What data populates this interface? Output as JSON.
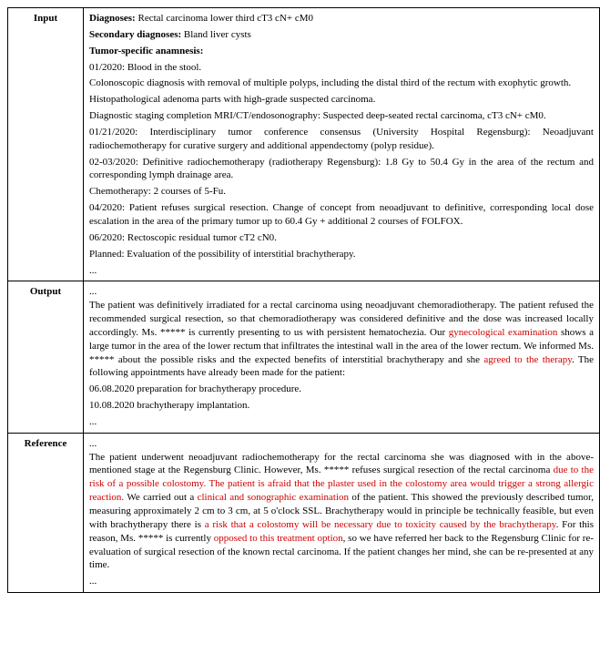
{
  "rows": {
    "input": {
      "label": "Input",
      "diagnoses_label": "Diagnoses:",
      "diagnoses_text": " Rectal carcinoma lower third cT3 cN+ cM0",
      "secondary_label": "Secondary diagnoses:",
      "secondary_text": " Bland liver cysts",
      "anamnesis_label": "Tumor-specific anamnesis:",
      "p1": "01/2020: Blood in the stool.",
      "p2": "Colonoscopic diagnosis with removal of multiple polyps, including the distal third of the rectum with exophytic growth.",
      "p3": "Histopathological adenoma parts with high-grade suspected carcinoma.",
      "p4": "Diagnostic staging completion MRI/CT/endosonography: Suspected deep-seated rectal carcinoma, cT3 cN+ cM0.",
      "p5": "01/21/2020: Interdisciplinary tumor conference consensus (University Hospital Regensburg): Neoadjuvant radiochemotherapy for curative surgery and additional appendectomy (polyp residue).",
      "p6": "02-03/2020: Definitive radiochemotherapy (radiotherapy Regensburg): 1.8 Gy to 50.4 Gy in the area of the rectum and corresponding lymph drainage area.",
      "p7": "Chemotherapy: 2 courses of 5-Fu.",
      "p8": "04/2020: Patient refuses surgical resection. Change of concept from neoadjuvant to definitive, corresponding local dose escalation in the area of the primary tumor up to 60.4 Gy + additional 2 courses of FOLFOX.",
      "p9": "06/2020: Rectoscopic residual tumor cT2 cN0.",
      "p10": "Planned: Evaluation of the possibility of interstitial brachytherapy.",
      "p11": "..."
    },
    "output": {
      "label": "Output",
      "e1": "...",
      "t1": "The patient was definitively irradiated for a rectal carcinoma using neoadjuvant chemoradiotherapy. The patient refused the recommended surgical resection, so that chemoradiotherapy was considered definitive and the dose was increased locally accordingly. Ms. ***** is currently presenting to us with persistent hematochezia. Our ",
      "r1": "gynecological examination",
      "t2": " shows a large tumor in the area of the lower rectum that infiltrates the intestinal wall in the area of the lower rectum. We informed Ms. ***** about the possible risks and the expected benefits of interstitial brachytherapy and she ",
      "r2": "agreed to the therapy",
      "t3": ". The following appointments have already been made for the patient:",
      "a1": "06.08.2020 preparation for brachytherapy procedure.",
      "a2": "10.08.2020 brachytherapy implantation.",
      "e2": "..."
    },
    "reference": {
      "label": "Reference",
      "e1": "...",
      "t1": "The patient underwent neoadjuvant radiochemotherapy for the rectal carcinoma she was diagnosed with in the above-mentioned stage at the Regensburg Clinic. However, Ms. ***** refuses surgical resection of the rectal carcinoma ",
      "r1": "due to the risk of a possible colostomy. The patient is afraid that the plaster used in the colostomy area would trigger a strong allergic reaction.",
      "t2": " We carried out a ",
      "r2": "clinical and sonographic examination",
      "t3": " of the patient. This showed the previously described tumor, measuring approximately 2 cm to 3 cm, at 5 o'clock SSL. Brachytherapy would in principle be technically feasible, but even with brachytherapy there is ",
      "r3": "a risk that a colostomy will be necessary due to toxicity caused by the brachytherapy",
      "t4": ". For this reason, Ms. ***** is currently ",
      "r4": "opposed to this treatment option",
      "t5": ", so we have referred her back to the Regensburg Clinic for re-evaluation of surgical resection of the known rectal carcinoma. If the patient changes her mind, she can be re-presented at any time.",
      "e2": "..."
    }
  }
}
